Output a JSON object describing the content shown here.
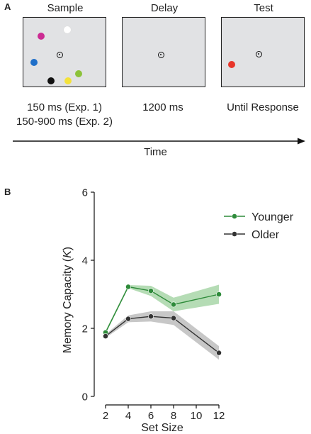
{
  "panel_a": {
    "label": "A",
    "frames": [
      {
        "title": "Sample",
        "caption_lines": [
          "150 ms (Exp. 1)",
          "150-900 ms (Exp. 2)"
        ],
        "dots": [
          {
            "color": "#cc2c93",
            "name": "magenta-dot"
          },
          {
            "color": "#ffffff",
            "name": "white-dot"
          },
          {
            "color": "#1f6fc9",
            "name": "blue-dot"
          },
          {
            "color": "#8cc23a",
            "name": "green-dot"
          },
          {
            "color": "#111111",
            "name": "black-dot"
          },
          {
            "color": "#f4e23a",
            "name": "yellow-dot"
          }
        ]
      },
      {
        "title": "Delay",
        "caption_lines": [
          "1200 ms"
        ],
        "dots": []
      },
      {
        "title": "Test",
        "caption_lines": [
          "Until Response"
        ],
        "dots": [
          {
            "color": "#e8352a",
            "name": "red-dot"
          }
        ]
      }
    ],
    "time_label": "Time"
  },
  "panel_b_label": "B",
  "chart_data": {
    "type": "line",
    "x": [
      2,
      4,
      6,
      8,
      12
    ],
    "xticks": [
      "2",
      "4",
      "6",
      "8",
      "10",
      "12"
    ],
    "xtick_values": [
      2,
      4,
      6,
      8,
      10,
      12
    ],
    "xlim": [
      1,
      13
    ],
    "yticks": [
      "0",
      "2",
      "4",
      "6"
    ],
    "ytick_values": [
      0,
      2,
      4,
      6
    ],
    "ylim": [
      0,
      6
    ],
    "xlabel": "Set Size",
    "ylabel_parts": [
      "Memory Capacity (",
      "K",
      ")"
    ],
    "legend_position": "top-right",
    "series": [
      {
        "name": "Younger",
        "color": "#2e8b3a",
        "band_color": "#a8d6a8",
        "values": [
          1.88,
          3.22,
          3.1,
          2.7,
          3.0
        ],
        "lower": [
          1.83,
          3.18,
          2.95,
          2.5,
          2.72
        ],
        "upper": [
          1.93,
          3.27,
          3.25,
          2.9,
          3.28
        ]
      },
      {
        "name": "Older",
        "color": "#333333",
        "band_color": "#bdbdbd",
        "values": [
          1.77,
          2.28,
          2.35,
          2.3,
          1.28
        ],
        "lower": [
          1.72,
          2.18,
          2.2,
          2.1,
          1.08
        ],
        "upper": [
          1.82,
          2.38,
          2.5,
          2.5,
          1.48
        ]
      }
    ]
  }
}
